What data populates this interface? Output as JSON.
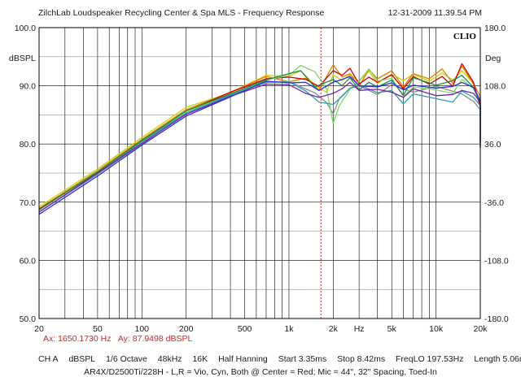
{
  "header": {
    "title": "ZilchLab Loudspeaker Recycling Center & Spa   MLS - Frequency Response",
    "timestamp": "12-31-2009 11.39.54 PM"
  },
  "axes": {
    "left_unit": "dBSPL",
    "right_unit": "Deg",
    "x_unit": "Hz",
    "brand": "CLIO"
  },
  "cursor": {
    "ax": "Ax: 1650.1730 Hz",
    "ay": "Ay: 87.9498 dBSPL"
  },
  "settings": {
    "channel": "CH A",
    "unit": "dBSPL",
    "smoothing": "1/6 Octave",
    "rate": "48kHz",
    "size": "16K",
    "window": "Half Hanning",
    "start": "Start 3.35ms",
    "stop": "Stop 8.42ms",
    "freqlo": "FreqLO 197.53Hz",
    "length": "Length 5.06ms"
  },
  "caption": "AR4X/D2500Ti/228H - L,R = Vio, Cyn, Both @ Center = Red; Mic = 44\", 32\" Spacing, Toed-In",
  "colors": {
    "background": "#ffffff",
    "grid": "#000000",
    "cursor": "#c62828"
  },
  "chart_data": {
    "type": "line",
    "x_scale": "log",
    "xlim": [
      20,
      20000
    ],
    "ylim": [
      50,
      100
    ],
    "y2lim": [
      -180,
      180
    ],
    "grid": true,
    "x_ticks": [
      {
        "v": 20,
        "label": "20"
      },
      {
        "v": 50,
        "label": "50"
      },
      {
        "v": 100,
        "label": "100"
      },
      {
        "v": 200,
        "label": "200"
      },
      {
        "v": 500,
        "label": "500"
      },
      {
        "v": 1000,
        "label": "1k"
      },
      {
        "v": 2000,
        "label": "2k"
      },
      {
        "v": 3000,
        "label": "Hz"
      },
      {
        "v": 5000,
        "label": "5k"
      },
      {
        "v": 10000,
        "label": "10k"
      },
      {
        "v": 20000,
        "label": "20k"
      }
    ],
    "y_ticks": [
      {
        "v": 100,
        "label": "100.0"
      },
      {
        "v": 90,
        "label": "90.0"
      },
      {
        "v": 80,
        "label": "80.0"
      },
      {
        "v": 70,
        "label": "70.0"
      },
      {
        "v": 60,
        "label": "60.0"
      },
      {
        "v": 50,
        "label": "50.0"
      }
    ],
    "y2_ticks": [
      {
        "v": 180,
        "label": "180.0"
      },
      {
        "v": 108,
        "label": "108.0"
      },
      {
        "v": 36,
        "label": "36.0"
      },
      {
        "v": -36,
        "label": "-36.0"
      },
      {
        "v": -108,
        "label": "-108.0"
      },
      {
        "v": -180,
        "label": "-180.0"
      }
    ],
    "cursor_x": 1650.173,
    "series": [
      {
        "color": "#8b8b8b",
        "points": [
          [
            20,
            68.3
          ],
          [
            50,
            74.8
          ],
          [
            100,
            80
          ],
          [
            200,
            85.3
          ],
          [
            400,
            88.6
          ],
          [
            700,
            90.6
          ],
          [
            1000,
            90.7
          ],
          [
            1500,
            88.8
          ],
          [
            1800,
            87.1
          ],
          [
            2000,
            85.2
          ],
          [
            2200,
            87.8
          ],
          [
            2600,
            89.6
          ],
          [
            3000,
            90
          ],
          [
            4000,
            88.5
          ],
          [
            5000,
            90.2
          ],
          [
            7000,
            88.9
          ],
          [
            10000,
            89.9
          ],
          [
            15000,
            88.6
          ],
          [
            18000,
            87.3
          ],
          [
            20000,
            85.9
          ],
          [
            22000,
            79.2
          ]
        ]
      },
      {
        "color": "#cfcf00",
        "points": [
          [
            20,
            69.2
          ],
          [
            50,
            75.7
          ],
          [
            100,
            81.1
          ],
          [
            200,
            86.3
          ],
          [
            400,
            88.8
          ],
          [
            700,
            91.8
          ],
          [
            1000,
            91.6
          ],
          [
            1200,
            92.6
          ],
          [
            1500,
            90.1
          ],
          [
            1800,
            88.9
          ],
          [
            2000,
            91.9
          ],
          [
            2300,
            90.9
          ],
          [
            2600,
            91.9
          ],
          [
            3000,
            90.8
          ],
          [
            3500,
            92.5
          ],
          [
            4000,
            90.4
          ],
          [
            5000,
            92
          ],
          [
            6000,
            90.9
          ],
          [
            7000,
            92
          ],
          [
            9000,
            90.8
          ],
          [
            11000,
            92.2
          ],
          [
            13000,
            91
          ],
          [
            15000,
            92.6
          ],
          [
            18000,
            90.4
          ],
          [
            20000,
            86.6
          ],
          [
            22000,
            80.1
          ]
        ]
      },
      {
        "color": "#e08000",
        "points": [
          [
            20,
            68.9
          ],
          [
            50,
            75.4
          ],
          [
            100,
            80.8
          ],
          [
            200,
            85.9
          ],
          [
            400,
            88.9
          ],
          [
            700,
            91.6
          ],
          [
            1000,
            90.7
          ],
          [
            1300,
            91.3
          ],
          [
            1600,
            89.3
          ],
          [
            2000,
            93.6
          ],
          [
            2300,
            91.5
          ],
          [
            2600,
            92.1
          ],
          [
            3000,
            89.9
          ],
          [
            3500,
            92.8
          ],
          [
            4000,
            91.2
          ],
          [
            5000,
            92.6
          ],
          [
            6000,
            89.8
          ],
          [
            7000,
            92.1
          ],
          [
            9000,
            91.2
          ],
          [
            11000,
            92.9
          ],
          [
            13000,
            90.4
          ],
          [
            15000,
            93.4
          ],
          [
            18000,
            90.3
          ],
          [
            20000,
            88.2
          ],
          [
            22000,
            80.3
          ]
        ]
      },
      {
        "color": "#cc0000",
        "points": [
          [
            20,
            68.8
          ],
          [
            50,
            75.1
          ],
          [
            100,
            80.6
          ],
          [
            200,
            85.6
          ],
          [
            400,
            88.9
          ],
          [
            700,
            91.2
          ],
          [
            1000,
            91.5
          ],
          [
            1300,
            91.1
          ],
          [
            1600,
            89.9
          ],
          [
            2000,
            92.6
          ],
          [
            2300,
            91.8
          ],
          [
            2600,
            93
          ],
          [
            3000,
            90.3
          ],
          [
            3500,
            91.5
          ],
          [
            4000,
            90.6
          ],
          [
            5000,
            91.9
          ],
          [
            6000,
            89.5
          ],
          [
            7000,
            91.6
          ],
          [
            9000,
            90.3
          ],
          [
            11000,
            91.6
          ],
          [
            13000,
            89.9
          ],
          [
            15000,
            93.8
          ],
          [
            18000,
            90.6
          ],
          [
            20000,
            86.3
          ],
          [
            22000,
            80.3
          ]
        ]
      },
      {
        "color": "#7cd96a",
        "points": [
          [
            20,
            68.6
          ],
          [
            50,
            75.3
          ],
          [
            100,
            80.2
          ],
          [
            200,
            85.6
          ],
          [
            400,
            88.3
          ],
          [
            700,
            91
          ],
          [
            1000,
            91.8
          ],
          [
            1200,
            93.5
          ],
          [
            1500,
            92.4
          ],
          [
            1800,
            89.5
          ],
          [
            2000,
            83.5
          ],
          [
            2200,
            86.6
          ],
          [
            2600,
            89.4
          ],
          [
            3000,
            90.8
          ],
          [
            3500,
            92.9
          ],
          [
            4000,
            90.8
          ],
          [
            5000,
            91.3
          ],
          [
            6000,
            88.2
          ],
          [
            7000,
            89.8
          ],
          [
            10000,
            89.3
          ],
          [
            13000,
            88.7
          ],
          [
            15000,
            91.1
          ],
          [
            18000,
            89.5
          ],
          [
            20000,
            87.1
          ],
          [
            22000,
            80.9
          ]
        ]
      },
      {
        "color": "#1f8a3e",
        "points": [
          [
            20,
            68.7
          ],
          [
            50,
            75.2
          ],
          [
            100,
            80.6
          ],
          [
            200,
            85.7
          ],
          [
            400,
            88.6
          ],
          [
            700,
            91
          ],
          [
            1000,
            92.1
          ],
          [
            1200,
            92.6
          ],
          [
            1500,
            89.8
          ],
          [
            2000,
            91.1
          ],
          [
            2300,
            90
          ],
          [
            2600,
            91.4
          ],
          [
            3000,
            89.3
          ],
          [
            3500,
            90.6
          ],
          [
            4000,
            89.8
          ],
          [
            5000,
            91
          ],
          [
            6000,
            88.4
          ],
          [
            7000,
            91.4
          ],
          [
            10000,
            90.1
          ],
          [
            13000,
            90.9
          ],
          [
            15000,
            91.8
          ],
          [
            18000,
            89.7
          ],
          [
            20000,
            87.5
          ],
          [
            22000,
            79.5
          ]
        ]
      },
      {
        "color": "#2a9fb0",
        "points": [
          [
            20,
            68.3
          ],
          [
            50,
            74.9
          ],
          [
            100,
            80.4
          ],
          [
            200,
            85.3
          ],
          [
            400,
            88.4
          ],
          [
            700,
            90.6
          ],
          [
            1000,
            90.7
          ],
          [
            1300,
            89.1
          ],
          [
            1600,
            87.2
          ],
          [
            2000,
            86.8
          ],
          [
            2300,
            88.2
          ],
          [
            2600,
            89.6
          ],
          [
            3000,
            90.2
          ],
          [
            4000,
            88.8
          ],
          [
            5000,
            89.2
          ],
          [
            6000,
            86.9
          ],
          [
            7000,
            88.6
          ],
          [
            10000,
            87.8
          ],
          [
            13000,
            87.2
          ],
          [
            15000,
            89.1
          ],
          [
            18000,
            88
          ],
          [
            20000,
            86.6
          ],
          [
            22000,
            80.2
          ]
        ]
      },
      {
        "color": "#7a1fa8",
        "points": [
          [
            20,
            68.3
          ],
          [
            50,
            75
          ],
          [
            100,
            80.1
          ],
          [
            200,
            85.1
          ],
          [
            400,
            88.2
          ],
          [
            700,
            90.3
          ],
          [
            1000,
            90.2
          ],
          [
            1300,
            88.7
          ],
          [
            1600,
            88
          ],
          [
            2000,
            88.7
          ],
          [
            2300,
            89.5
          ],
          [
            2600,
            90.6
          ],
          [
            3000,
            89.2
          ],
          [
            4000,
            89.4
          ],
          [
            5000,
            88.9
          ],
          [
            6000,
            88
          ],
          [
            7000,
            89.5
          ],
          [
            10000,
            88.3
          ],
          [
            13000,
            88.5
          ],
          [
            15000,
            89.2
          ],
          [
            18000,
            88.7
          ],
          [
            20000,
            87.2
          ],
          [
            22000,
            80.8
          ]
        ]
      },
      {
        "color": "#2b2fd6",
        "points": [
          [
            20,
            67.9
          ],
          [
            50,
            74.5
          ],
          [
            100,
            79.8
          ],
          [
            200,
            84.8
          ],
          [
            400,
            88.1
          ],
          [
            700,
            90.8
          ],
          [
            1000,
            90.5
          ],
          [
            1300,
            90.6
          ],
          [
            1600,
            89.2
          ],
          [
            2000,
            90.6
          ],
          [
            2300,
            91.1
          ],
          [
            2600,
            91.6
          ],
          [
            3000,
            90
          ],
          [
            4000,
            89.8
          ],
          [
            5000,
            90.5
          ],
          [
            6000,
            89.3
          ],
          [
            7000,
            90.1
          ],
          [
            10000,
            89.6
          ],
          [
            13000,
            89.9
          ],
          [
            15000,
            90.6
          ],
          [
            18000,
            89.7
          ],
          [
            20000,
            87.2
          ],
          [
            22000,
            79.6
          ]
        ]
      }
    ]
  }
}
